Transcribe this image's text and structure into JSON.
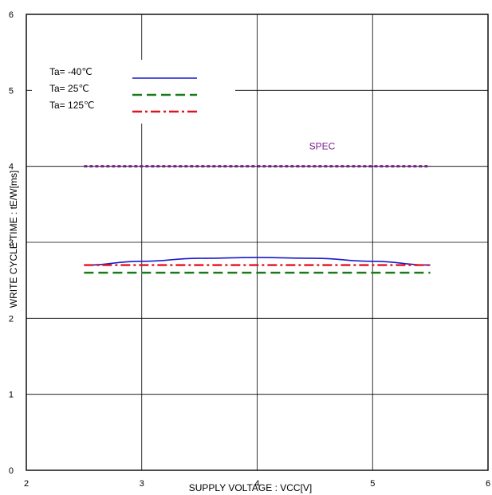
{
  "chart_data": {
    "type": "line",
    "title": "",
    "xlabel": "SUPPLY VOLTAGE : VCC[V]",
    "ylabel": "WRITE CYCLE TIME : tE/W[ms]",
    "xlim": [
      2,
      6
    ],
    "ylim": [
      0,
      6
    ],
    "x_ticks": [
      "2",
      "3",
      "4",
      "5",
      "6"
    ],
    "y_ticks": [
      "0",
      "1",
      "2",
      "3",
      "4",
      "5",
      "6"
    ],
    "grid": true,
    "legend_position": "top-left",
    "series": [
      {
        "name": "Ta= -40℃",
        "color": "#1a1acd",
        "style": "solid",
        "x": [
          2.5,
          3.0,
          3.5,
          4.0,
          4.5,
          5.0,
          5.5
        ],
        "y": [
          2.7,
          2.75,
          2.79,
          2.8,
          2.79,
          2.75,
          2.7
        ]
      },
      {
        "name": "Ta=  25℃",
        "color": "#1a7a1a",
        "style": "dash",
        "x": [
          2.5,
          5.5
        ],
        "y": [
          2.6,
          2.6
        ]
      },
      {
        "name": "Ta= 125℃",
        "color": "#e0141e",
        "style": "dashdot",
        "x": [
          2.5,
          5.5
        ],
        "y": [
          2.7,
          2.7
        ]
      },
      {
        "name": "SPEC",
        "color": "#7a1f8c",
        "style": "dotted",
        "x": [
          2.5,
          5.5
        ],
        "y": [
          4.0,
          4.0
        ]
      }
    ],
    "annotations": [
      {
        "text": "SPEC",
        "x": 4.45,
        "y": 4.2,
        "color": "#7a1f8c"
      }
    ]
  }
}
